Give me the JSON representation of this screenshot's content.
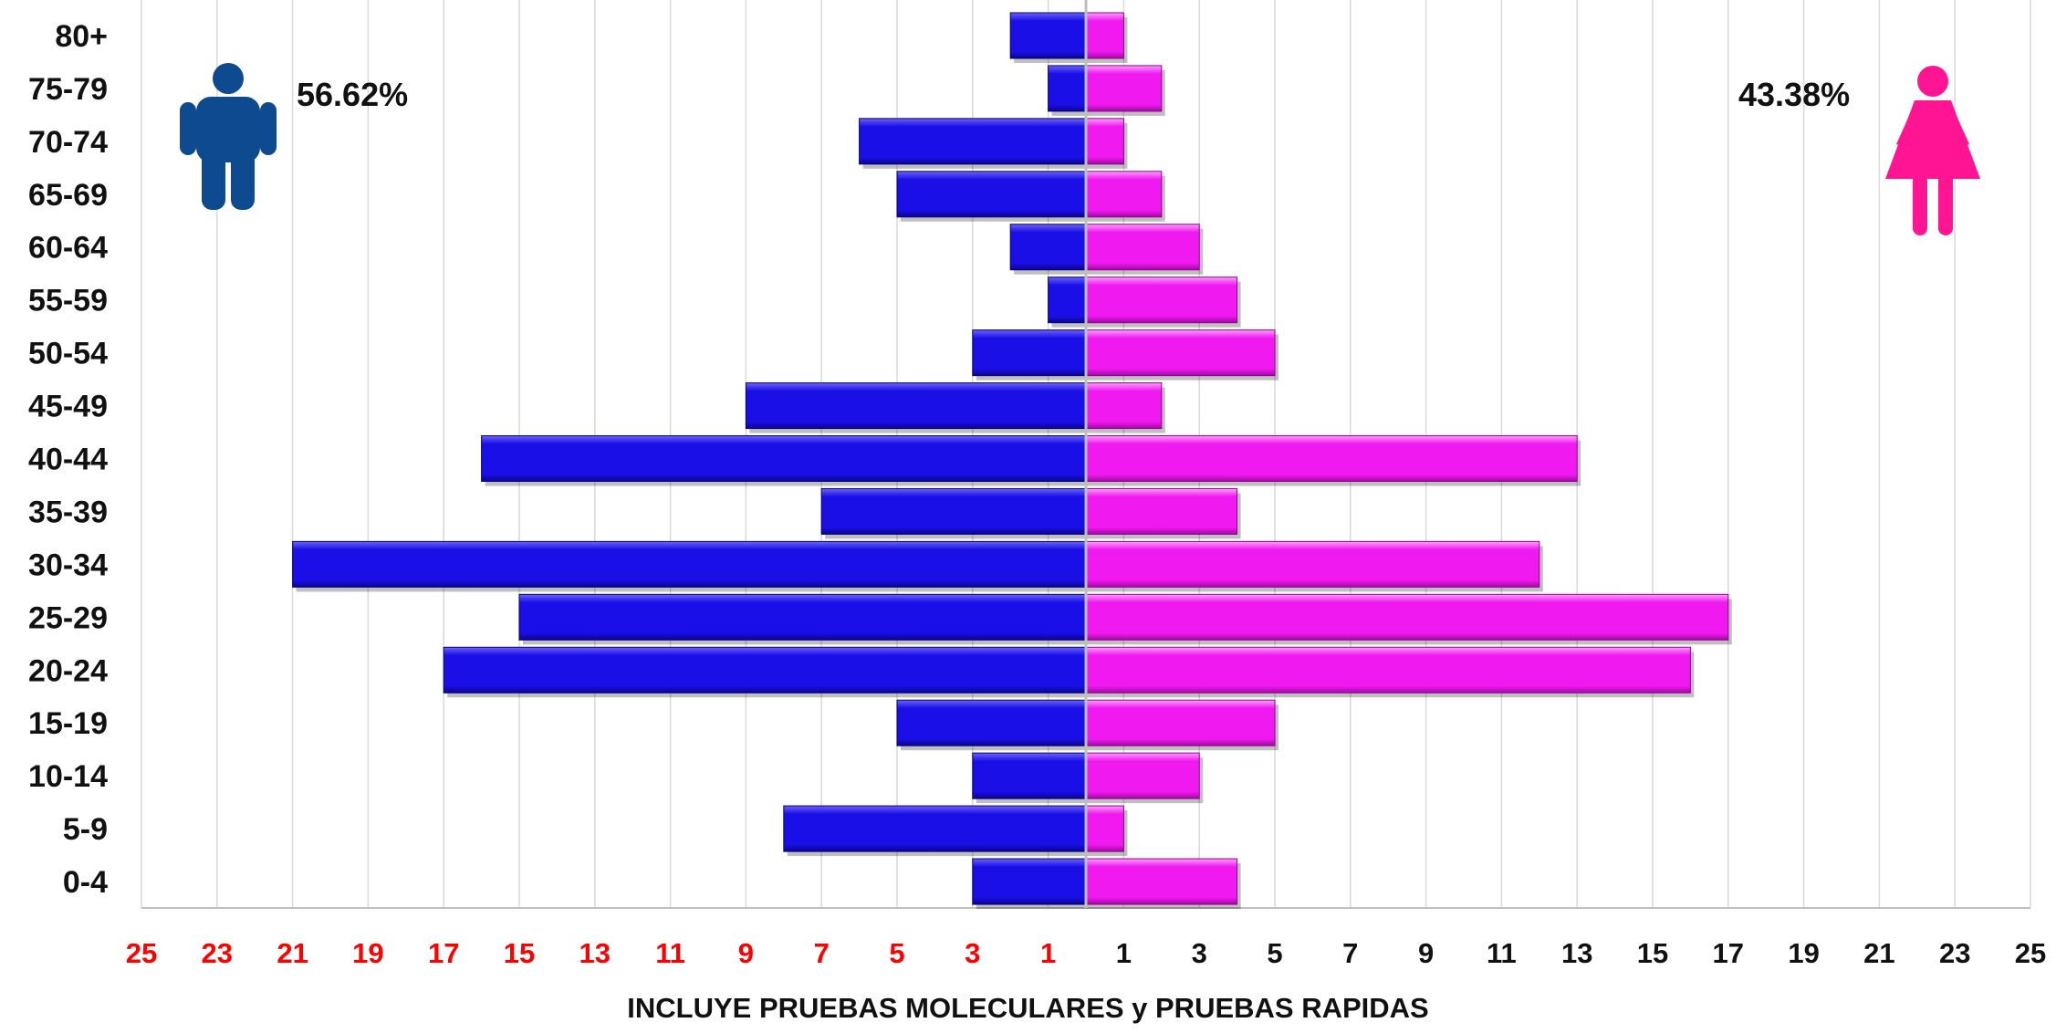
{
  "chart_data": {
    "type": "bar",
    "categories": [
      "80+",
      "75-79",
      "70-74",
      "65-69",
      "60-64",
      "55-59",
      "50-54",
      "45-49",
      "40-44",
      "35-39",
      "30-34",
      "25-29",
      "20-24",
      "15-19",
      "10-14",
      "5-9",
      "0-4"
    ],
    "series": [
      {
        "values": [
          2,
          1,
          6,
          5,
          2,
          1,
          3,
          9,
          16,
          7,
          21,
          15,
          17,
          5,
          3,
          8,
          3
        ]
      },
      {
        "values": [
          1,
          2,
          1,
          2,
          3,
          4,
          5,
          2,
          13,
          4,
          12,
          17,
          16,
          5,
          3,
          1,
          4
        ]
      }
    ],
    "xlim": [
      -25,
      25
    ],
    "left_tick_labels": [
      "25",
      "23",
      "21",
      "19",
      "17",
      "15",
      "13",
      "11",
      "9",
      "7",
      "5",
      "3",
      "1"
    ],
    "right_tick_labels": [
      "1",
      "3",
      "5",
      "7",
      "9",
      "11",
      "13",
      "15",
      "17",
      "19",
      "21",
      "23",
      "25"
    ],
    "xlabel": "INCLUYE PRUEBAS MOLECULARES y PRUEBAS RAPIDAS",
    "grid": true,
    "male_percent": "56.62%",
    "female_percent": "43.38%",
    "colors": {
      "male": "#1a0fe6",
      "female": "#f019f0",
      "left_ticks": "#ff0000",
      "right_ticks": "#111111",
      "male_icon": "#0d4a8f",
      "female_icon": "#ff1493",
      "grid": "#d9d9d9"
    }
  }
}
